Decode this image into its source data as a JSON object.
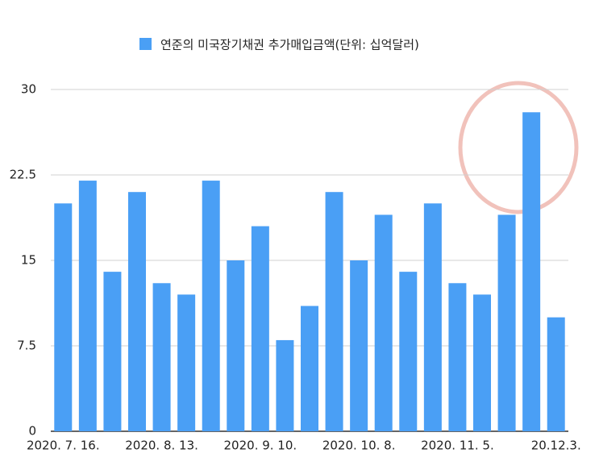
{
  "chart_data": {
    "type": "bar",
    "categories": [
      "2020. 7. 16.",
      null,
      null,
      null,
      "2020. 8. 13.",
      null,
      null,
      null,
      "2020. 9. 10.",
      null,
      null,
      null,
      "2020. 10. 8.",
      null,
      null,
      null,
      "2020. 11. 5.",
      null,
      null,
      null,
      "20.12.3."
    ],
    "series": [
      {
        "name": "연준의 미국장기채권 추가매입금액(단위: 십억달러)",
        "color": "#4a9ff5",
        "values": [
          20,
          22,
          14,
          21,
          13,
          12,
          22,
          15,
          18,
          8,
          11,
          21,
          15,
          19,
          14,
          20,
          13,
          12,
          19,
          28,
          10
        ]
      }
    ],
    "ylim": [
      0,
      30
    ],
    "yticks": [
      0,
      7.5,
      15,
      22.5,
      30
    ],
    "grid": true,
    "legend": "top"
  }
}
